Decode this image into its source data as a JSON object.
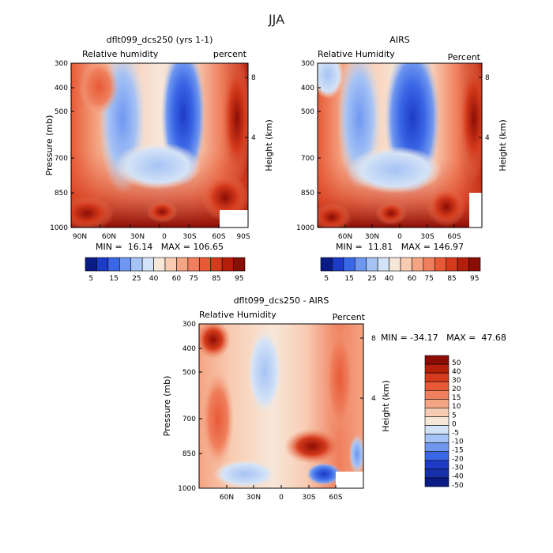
{
  "figure": {
    "title": "JJA"
  },
  "chart_data": [
    {
      "type": "heatmap",
      "title": "dflt099_dcs250 (yrs 1-1)",
      "left_label": "Relative humidity",
      "right_label": "percent",
      "xlabel": "",
      "ylabel": "Pressure (mb)",
      "y2label": "Height (km)",
      "x_ticks": [
        "90N",
        "60N",
        "30N",
        "0",
        "30S",
        "60S",
        "90S"
      ],
      "y_ticks": [
        "300",
        "400",
        "500",
        "700",
        "850",
        "1000"
      ],
      "y2_ticks": [
        "8",
        "4"
      ],
      "stats": "MIN =  16.14   MAX = 106.65",
      "colorbar": {
        "labels": [
          "5",
          "15",
          "25",
          "40",
          "60",
          "75",
          "85",
          "95"
        ],
        "colors": [
          "#0a1b86",
          "#1d3bc6",
          "#3a67e6",
          "#6f97f0",
          "#a6c3f5",
          "#d3e3f7",
          "#f7e7d9",
          "#f8ccb3",
          "#f4a584",
          "#ef7f5d",
          "#e85a36",
          "#d43a1b",
          "#b41f0c",
          "#8c0d05"
        ]
      }
    },
    {
      "type": "heatmap",
      "title": "AIRS",
      "left_label": "Relative Humidity",
      "right_label": "Percent",
      "xlabel": "",
      "ylabel": "Pressure (mb)",
      "y2label": "Height (km)",
      "x_ticks": [
        "60N",
        "30N",
        "0",
        "30S",
        "60S"
      ],
      "y_ticks": [
        "300",
        "400",
        "500",
        "700",
        "850",
        "1000"
      ],
      "y2_ticks": [
        "8",
        "4"
      ],
      "stats": "MIN =  11.81   MAX = 146.97",
      "colorbar": {
        "labels": [
          "5",
          "15",
          "25",
          "40",
          "60",
          "75",
          "85",
          "95"
        ],
        "colors": [
          "#0a1b86",
          "#1d3bc6",
          "#3a67e6",
          "#6f97f0",
          "#a6c3f5",
          "#d3e3f7",
          "#f7e7d9",
          "#f8ccb3",
          "#f4a584",
          "#ef7f5d",
          "#e85a36",
          "#d43a1b",
          "#b41f0c",
          "#8c0d05"
        ]
      }
    },
    {
      "type": "heatmap",
      "title": "dflt099_dcs250 - AIRS",
      "left_label": "Relative Humidity",
      "right_label": "Percent",
      "xlabel": "",
      "ylabel": "Pressure (mb)",
      "y2label": "Height (km)",
      "x_ticks": [
        "60N",
        "30N",
        "0",
        "30S",
        "60S"
      ],
      "y_ticks": [
        "300",
        "400",
        "500",
        "700",
        "850",
        "1000"
      ],
      "y2_ticks": [
        "8",
        "4"
      ],
      "stats": "MIN = -34.17   MAX =  47.68",
      "colorbar": {
        "labels": [
          "50",
          "40",
          "30",
          "20",
          "15",
          "10",
          "5",
          "0",
          "-5",
          "-10",
          "-15",
          "-20",
          "-30",
          "-40",
          "-50"
        ],
        "colors": [
          "#8c0d05",
          "#b41f0c",
          "#d43a1b",
          "#e85a36",
          "#ef7f5d",
          "#f4a584",
          "#f8ccb3",
          "#f7e7d9",
          "#d3e3f7",
          "#a6c3f5",
          "#6f97f0",
          "#3a67e6",
          "#1d3bc6",
          "#1530a8",
          "#0a1b86"
        ]
      }
    }
  ]
}
